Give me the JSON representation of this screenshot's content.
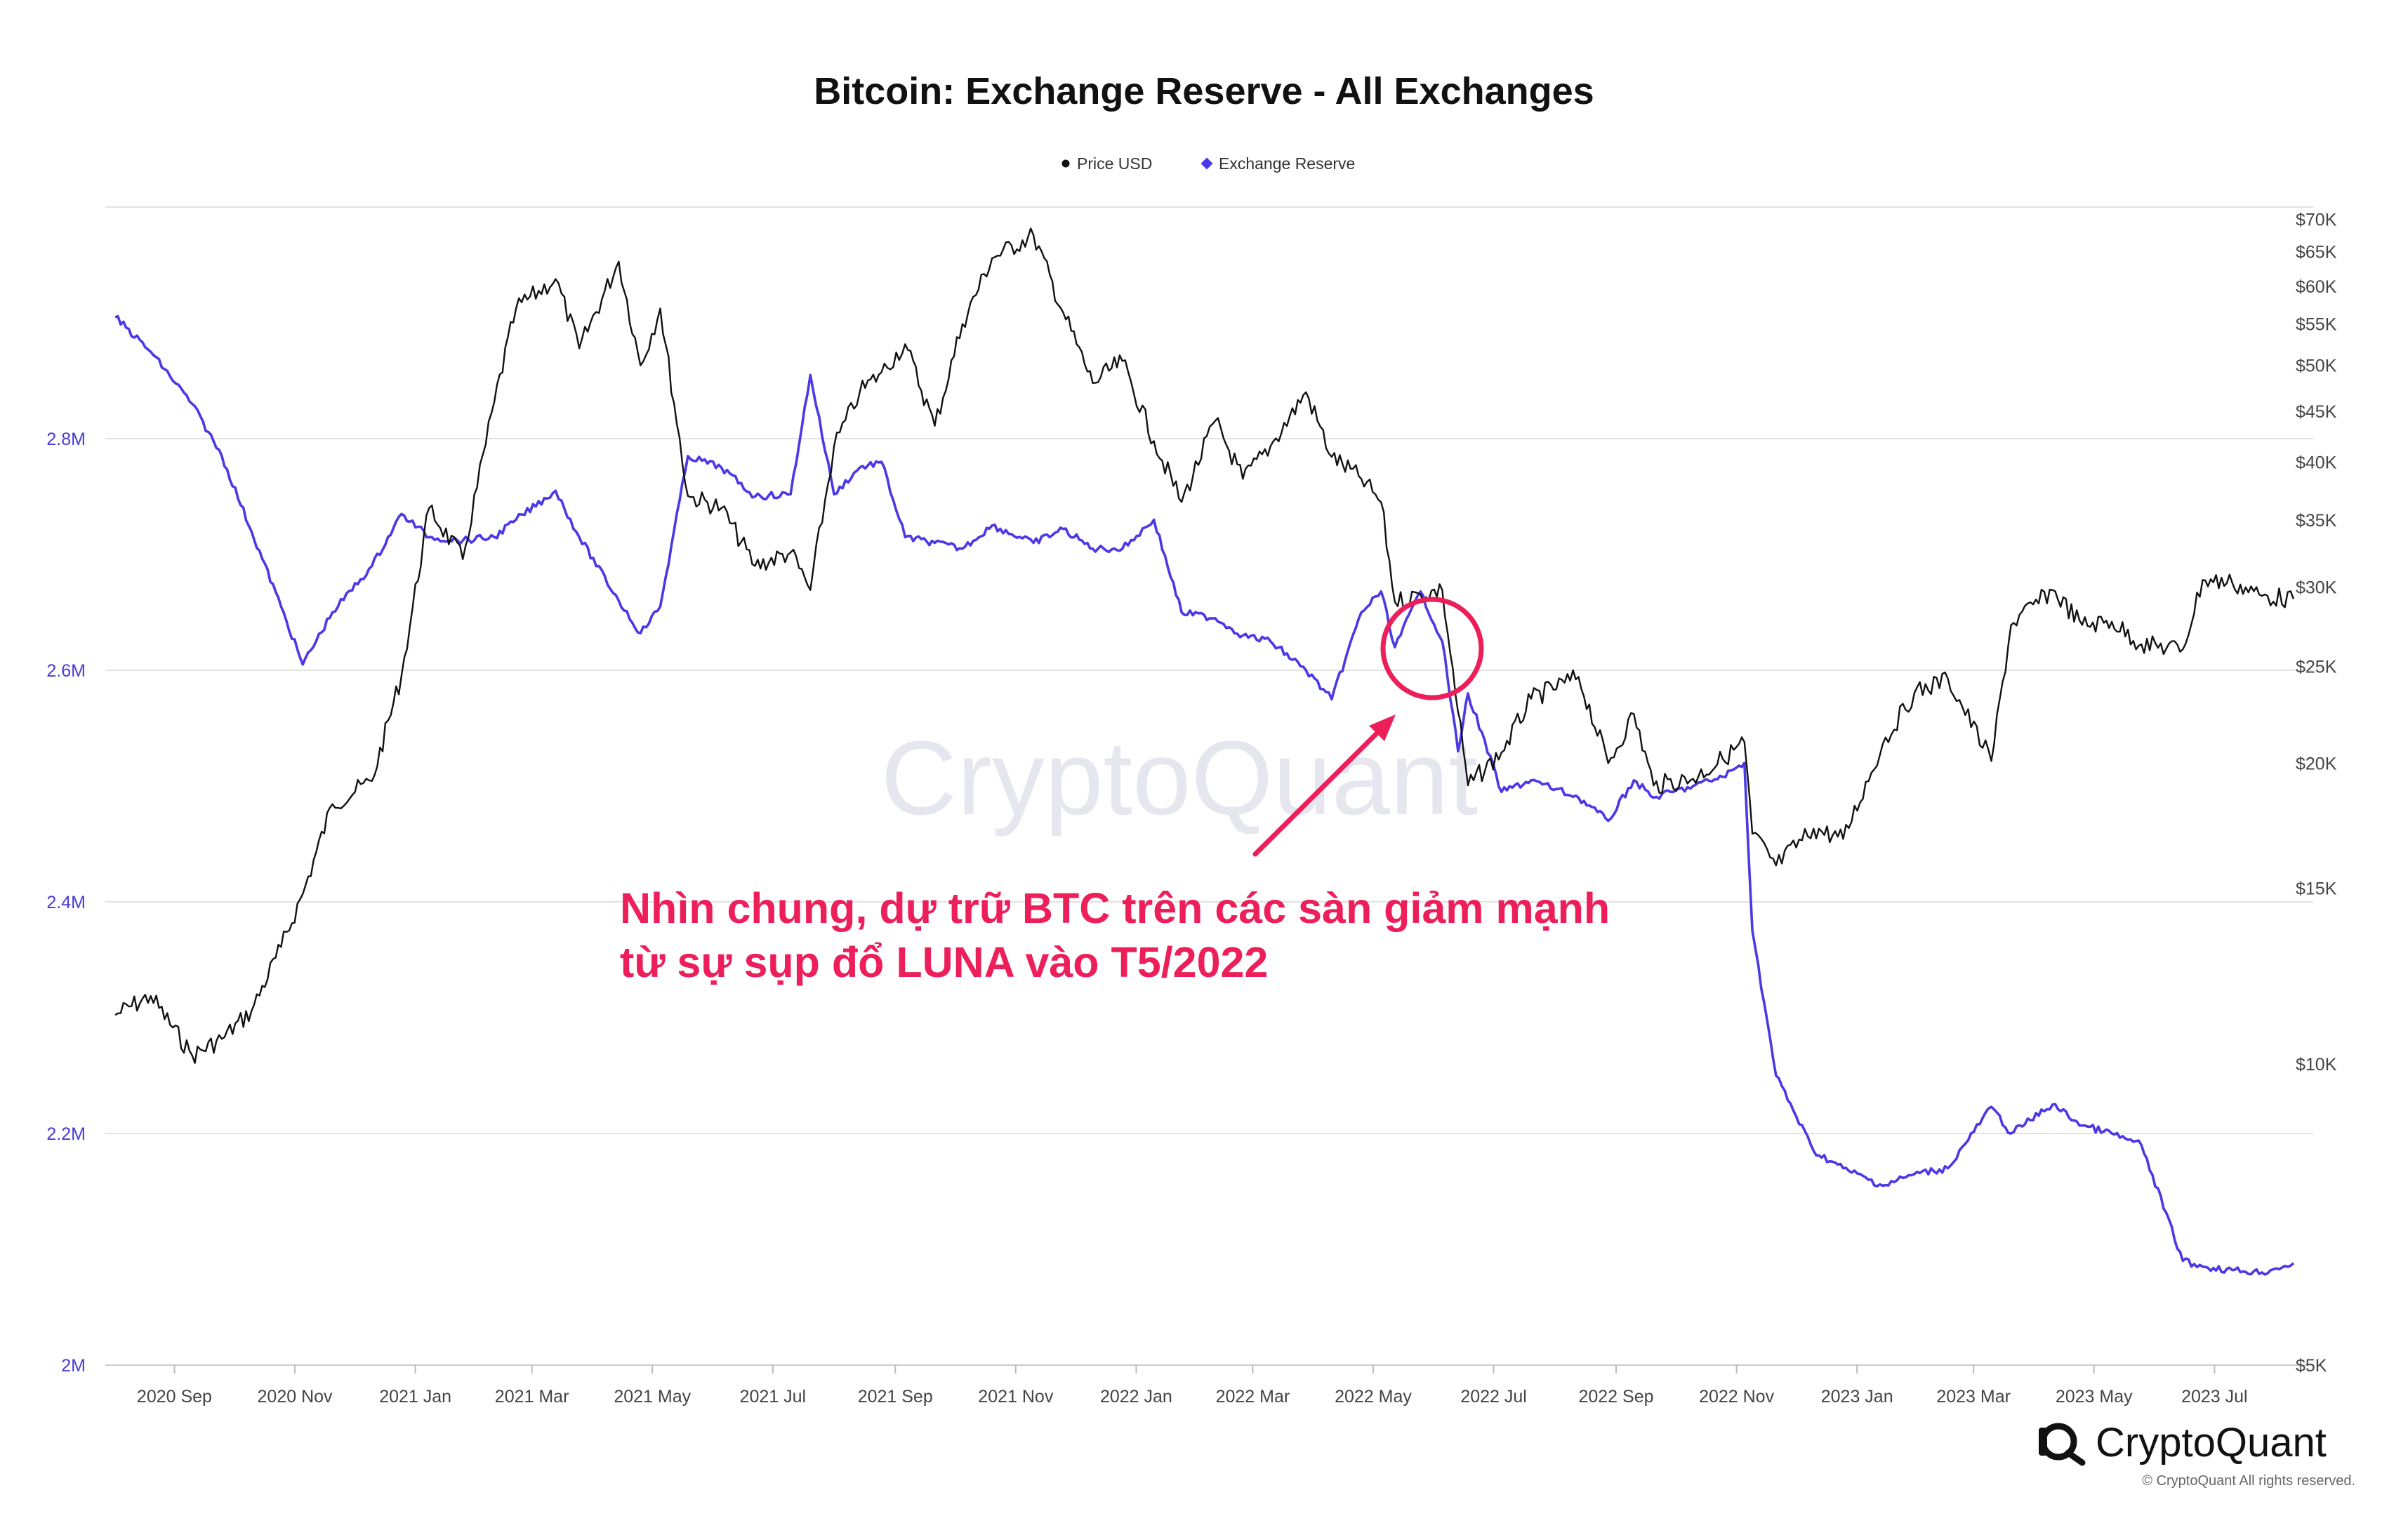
{
  "chart_data": {
    "type": "line",
    "title": "Bitcoin: Exchange Reserve - All Exchanges",
    "legend_placement": "top-center",
    "grid": true,
    "x_tick_labels": [
      "2020 Sep",
      "2020 Nov",
      "2021 Jan",
      "2021 Mar",
      "2021 May",
      "2021 Jul",
      "2021 Sep",
      "2021 Nov",
      "2022 Jan",
      "2022 Mar",
      "2022 May",
      "2022 Jul",
      "2022 Sep",
      "2022 Nov",
      "2023 Jan",
      "2023 Mar",
      "2023 May",
      "2023 Jul"
    ],
    "left_axis": {
      "series": "Exchange Reserve",
      "ylim": [
        2000000,
        3000000
      ],
      "ticks": [
        2000000,
        2200000,
        2400000,
        2600000,
        2800000
      ],
      "tick_labels": [
        "2M",
        "2.2M",
        "2.4M",
        "2.6M",
        "2.8M"
      ]
    },
    "right_axis": {
      "series": "Price USD",
      "scale": "log",
      "ylim": [
        5000,
        72000
      ],
      "ticks": [
        5000,
        10000,
        15000,
        20000,
        25000,
        30000,
        35000,
        40000,
        45000,
        50000,
        55000,
        60000,
        65000,
        70000
      ],
      "tick_labels": [
        "$5K",
        "$10K",
        "$15K",
        "$20K",
        "$25K",
        "$30K",
        "$35K",
        "$40K",
        "$45K",
        "$50K",
        "$55K",
        "$60K",
        "$65K",
        "$70K"
      ]
    },
    "x": [
      "2020-08-02",
      "2020-08-20",
      "2020-09-10",
      "2020-09-25",
      "2020-10-10",
      "2020-10-25",
      "2020-11-05",
      "2020-11-20",
      "2020-12-10",
      "2020-12-25",
      "2021-01-08",
      "2021-01-25",
      "2021-02-10",
      "2021-02-21",
      "2021-03-13",
      "2021-03-25",
      "2021-04-14",
      "2021-04-25",
      "2021-05-05",
      "2021-05-19",
      "2021-06-05",
      "2021-06-22",
      "2021-07-10",
      "2021-07-20",
      "2021-08-01",
      "2021-08-14",
      "2021-08-25",
      "2021-09-06",
      "2021-09-21",
      "2021-10-05",
      "2021-10-20",
      "2021-11-10",
      "2021-11-25",
      "2021-12-10",
      "2021-12-25",
      "2022-01-10",
      "2022-01-24",
      "2022-02-10",
      "2022-02-24",
      "2022-03-10",
      "2022-03-28",
      "2022-04-10",
      "2022-04-25",
      "2022-05-05",
      "2022-05-12",
      "2022-05-25",
      "2022-06-05",
      "2022-06-13",
      "2022-06-18",
      "2022-07-05",
      "2022-07-20",
      "2022-08-13",
      "2022-08-28",
      "2022-09-10",
      "2022-09-20",
      "2022-10-10",
      "2022-10-25",
      "2022-11-05",
      "2022-11-09",
      "2022-11-21",
      "2022-12-10",
      "2022-12-25",
      "2023-01-14",
      "2023-01-30",
      "2023-02-16",
      "2023-03-10",
      "2023-03-20",
      "2023-04-10",
      "2023-04-25",
      "2023-05-10",
      "2023-05-25",
      "2023-06-15",
      "2023-06-25",
      "2023-07-10",
      "2023-07-25",
      "2023-08-10"
    ],
    "series": [
      {
        "name": "Price USD",
        "color": "#111111",
        "axis": "right",
        "values": [
          11200,
          11700,
          10200,
          10600,
          11300,
          13100,
          14800,
          18200,
          19200,
          24500,
          36000,
          32000,
          46000,
          57000,
          61000,
          52000,
          63500,
          50000,
          57000,
          37000,
          36000,
          31500,
          32500,
          29800,
          41500,
          47000,
          49200,
          52500,
          43500,
          55000,
          64000,
          67500,
          56500,
          48000,
          50500,
          42000,
          36500,
          44000,
          38500,
          41500,
          47000,
          40500,
          38500,
          36500,
          29000,
          29500,
          29800,
          22500,
          19000,
          20500,
          23200,
          24400,
          20000,
          22400,
          19000,
          19300,
          20200,
          21000,
          17000,
          15800,
          17200,
          16800,
          20900,
          23500,
          24300,
          20100,
          27500,
          29800,
          27500,
          27700,
          26300,
          26000,
          30500,
          30300,
          29400,
          29200
        ]
      },
      {
        "name": "Exchange Reserve",
        "color": "#4b38e6",
        "axis": "left",
        "values": [
          2905000,
          2875000,
          2830000,
          2785000,
          2720000,
          2655000,
          2605000,
          2650000,
          2690000,
          2735000,
          2715000,
          2712000,
          2715000,
          2730000,
          2755000,
          2715000,
          2660000,
          2632000,
          2655000,
          2785000,
          2775000,
          2750000,
          2752000,
          2855000,
          2752000,
          2775000,
          2780000,
          2715000,
          2710000,
          2705000,
          2725000,
          2710000,
          2722000,
          2705000,
          2705000,
          2730000,
          2650000,
          2645000,
          2630000,
          2625000,
          2600000,
          2575000,
          2650000,
          2668000,
          2620000,
          2668000,
          2625000,
          2530000,
          2580000,
          2495000,
          2505000,
          2490000,
          2470000,
          2505000,
          2490000,
          2500000,
          2508000,
          2520000,
          2375000,
          2250000,
          2185000,
          2170000,
          2155000,
          2165000,
          2170000,
          2223000,
          2200000,
          2225000,
          2207000,
          2200000,
          2190000,
          2090000,
          2085000,
          2082000,
          2080000,
          2088000
        ]
      }
    ]
  },
  "legend": [
    {
      "label": "Price USD",
      "color": "#111111"
    },
    {
      "label": "Exchange Reserve",
      "color": "#4b38e6"
    }
  ],
  "watermark": "CryptoQuant",
  "annotation": {
    "line1": "Nhìn chung, dự trữ BTC trên các sàn giảm mạnh",
    "line2": "từ sự sụp đổ LUNA vào T5/2022",
    "color": "#ec1f5b",
    "circle_date": "2022-05-27"
  },
  "branding": {
    "logo_text": "CryptoQuant",
    "copyright": "© CryptoQuant All rights reserved."
  }
}
